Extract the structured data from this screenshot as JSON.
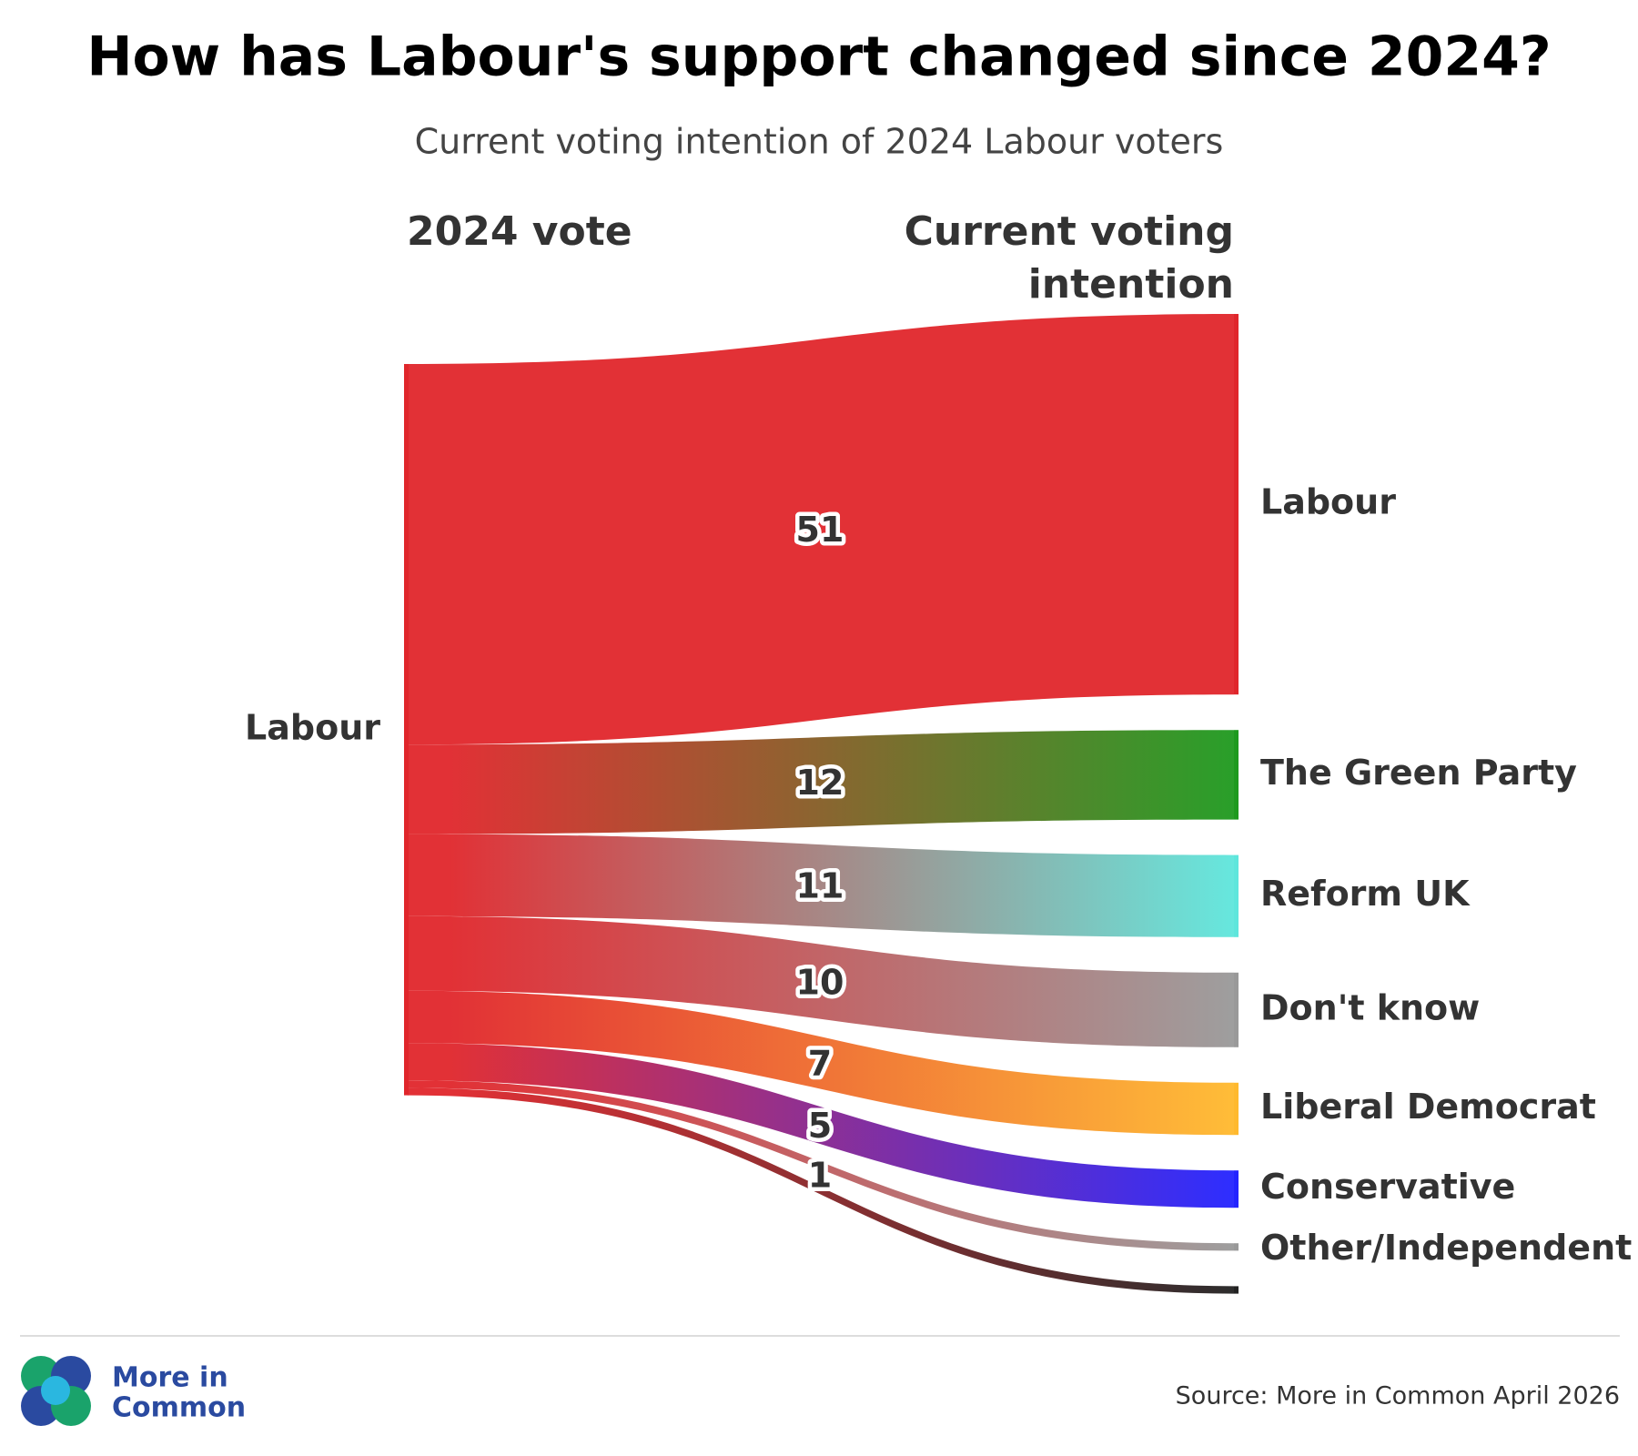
{
  "chart_data": {
    "type": "sankey",
    "title": "How has Labour's support changed since 2024?",
    "subtitle": "Current voting intention of 2024 Labour voters",
    "source_header": "2024 vote",
    "target_header": "Current voting intention",
    "source": "Labour",
    "source_color": "#e0262b",
    "categories": [
      "Labour",
      "The Green Party",
      "Reform UK",
      "Don't know",
      "Liberal Democrat",
      "Conservative",
      "Other/Independent",
      null
    ],
    "values": [
      51,
      12,
      11,
      10,
      7,
      5,
      1,
      1
    ],
    "colors": [
      "#e0262b",
      "#1e9a1e",
      "#5ee6dc",
      "#999999",
      "#ffb92e",
      "#2323ff",
      "#999999",
      "#222222"
    ],
    "footer": {
      "logo_line1": "More in",
      "logo_line2": "Common",
      "source_note": "Source: More in Common April 2026"
    }
  }
}
